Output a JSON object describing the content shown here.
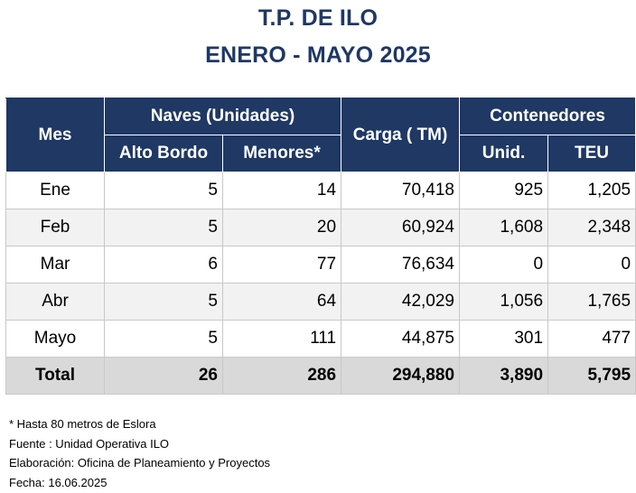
{
  "title_line1": "T.P. DE ILO",
  "title_line2": "ENERO - MAYO 2025",
  "headers": {
    "mes": "Mes",
    "naves": "Naves (Unidades)",
    "alto_bordo": "Alto Bordo",
    "menores": "Menores*",
    "carga": "Carga ( TM)",
    "contenedores": "Contenedores",
    "unid": "Unid.",
    "teu": "TEU"
  },
  "rows": [
    {
      "mes": "Ene",
      "alto_bordo": "5",
      "menores": "14",
      "carga": "70,418",
      "unid": "925",
      "teu": "1,205"
    },
    {
      "mes": "Feb",
      "alto_bordo": "5",
      "menores": "20",
      "carga": "60,924",
      "unid": "1,608",
      "teu": "2,348"
    },
    {
      "mes": "Mar",
      "alto_bordo": "6",
      "menores": "77",
      "carga": "76,634",
      "unid": "0",
      "teu": "0"
    },
    {
      "mes": "Abr",
      "alto_bordo": "5",
      "menores": "64",
      "carga": "42,029",
      "unid": "1,056",
      "teu": "1,765"
    },
    {
      "mes": "Mayo",
      "alto_bordo": "5",
      "menores": "111",
      "carga": "44,875",
      "unid": "301",
      "teu": "477"
    }
  ],
  "total": {
    "mes": "Total",
    "alto_bordo": "26",
    "menores": "286",
    "carga": "294,880",
    "unid": "3,890",
    "teu": "5,795"
  },
  "notes": {
    "footnote": "* Hasta 80 metros de Eslora",
    "fuente": "Fuente : Unidad Operativa ILO",
    "elaboracion": "Elaboración: Oficina de Planeamiento y Proyectos",
    "fecha": "Fecha: 16.06.2025"
  }
}
